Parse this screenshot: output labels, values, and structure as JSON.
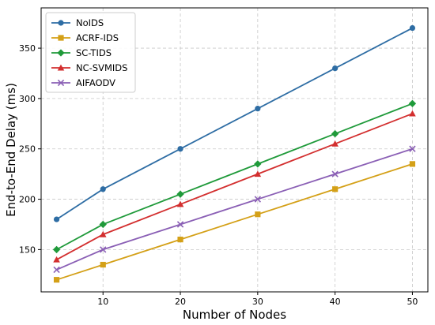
{
  "chart_data": {
    "type": "line",
    "title": "",
    "xlabel": "Number of Nodes",
    "ylabel": "End-to-End Delay (ms)",
    "x": [
      4,
      10,
      20,
      30,
      40,
      50
    ],
    "xticks": [
      10,
      20,
      30,
      40,
      50
    ],
    "yticks": [
      150,
      200,
      250,
      300,
      350
    ],
    "xlim": [
      2,
      52
    ],
    "ylim": [
      108,
      390
    ],
    "grid": true,
    "legend_position": "top-left",
    "series": [
      {
        "name": "NoIDS",
        "values": [
          180,
          210,
          250,
          290,
          330,
          370
        ],
        "color": "#2e6da4",
        "marker": "circle"
      },
      {
        "name": "ACRF-IDS",
        "values": [
          120,
          135,
          160,
          185,
          210,
          235
        ],
        "color": "#d4a017",
        "marker": "square"
      },
      {
        "name": "SC-TIDS",
        "values": [
          150,
          175,
          205,
          235,
          265,
          295
        ],
        "color": "#1f9a3a",
        "marker": "diamond"
      },
      {
        "name": "NC-SVMIDS",
        "values": [
          140,
          165,
          195,
          225,
          255,
          285
        ],
        "color": "#d32f2f",
        "marker": "triangle"
      },
      {
        "name": "AIFAODV",
        "values": [
          130,
          150,
          175,
          200,
          225,
          250
        ],
        "color": "#8a5fb5",
        "marker": "x"
      }
    ]
  }
}
